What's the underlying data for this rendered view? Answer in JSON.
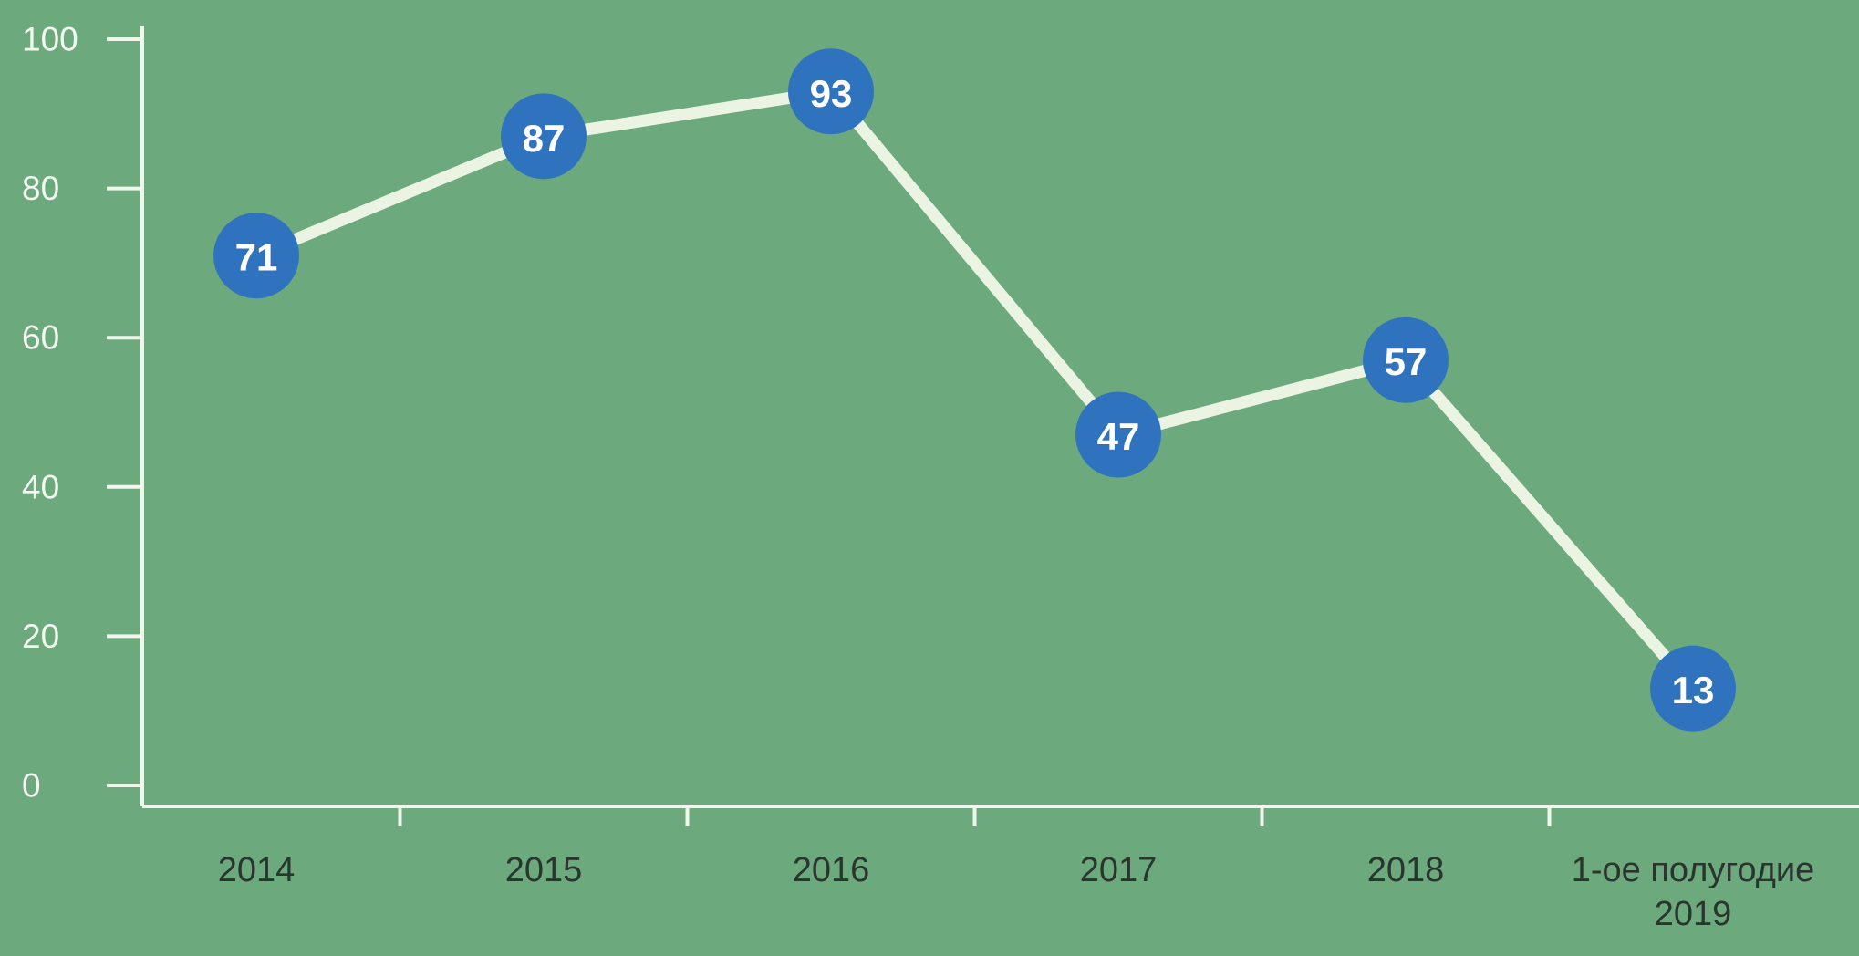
{
  "chart_data": {
    "type": "line",
    "categories": [
      "2014",
      "2015",
      "2016",
      "2017",
      "2018",
      "1-ое полугодие\n2019"
    ],
    "values": [
      71,
      87,
      93,
      47,
      57,
      13
    ],
    "title": "",
    "xlabel": "",
    "ylabel": "",
    "ylim": [
      0,
      100
    ],
    "yticks": [
      0,
      20,
      40,
      60,
      80,
      100
    ],
    "grid": false,
    "legend": "none",
    "colors": {
      "background": "#6caa7d",
      "line": "#ebf3e3",
      "marker": "#2f73bf",
      "marker_label": "#ffffff",
      "axis": "#f0f6ec",
      "ytick_label": "#f3f8f0",
      "xtick_label": "#29352e"
    }
  }
}
